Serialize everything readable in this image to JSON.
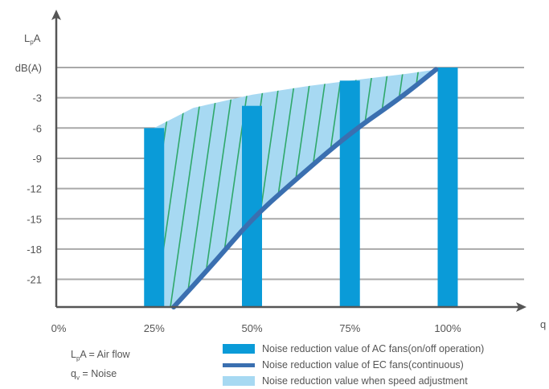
{
  "chart_data": {
    "type": "bar",
    "ylabel": "L_pA",
    "ylabel_main": "L",
    "ylabel_sub": "p",
    "ylabel_end": "A",
    "xlabel": "q",
    "y_unit_label": "dB(A)",
    "ylim": [
      -24,
      0
    ],
    "y_ticks": [
      {
        "value": 0,
        "label": "dB(A)"
      },
      {
        "value": -3,
        "label": "-3"
      },
      {
        "value": -6,
        "label": "-6"
      },
      {
        "value": -9,
        "label": "-9"
      },
      {
        "value": -12,
        "label": "-12"
      },
      {
        "value": -15,
        "label": "-15"
      },
      {
        "value": -18,
        "label": "-18"
      },
      {
        "value": -21,
        "label": "-21"
      }
    ],
    "x_ticks": [
      {
        "value": 0,
        "label": "0%"
      },
      {
        "value": 25,
        "label": "25%"
      },
      {
        "value": 50,
        "label": "50%"
      },
      {
        "value": 75,
        "label": "75%"
      },
      {
        "value": 100,
        "label": "100%"
      }
    ],
    "grid": true,
    "series": [
      {
        "name": "Noise reduction value of AC fans(on/off operation)",
        "kind": "bar",
        "color": "#0a9bd8",
        "x": [
          25,
          50,
          75,
          100
        ],
        "values": [
          -6,
          -3.8,
          -1.3,
          0
        ]
      },
      {
        "name": "Noise reduction value of EC fans(continuous)",
        "kind": "line",
        "color": "#3a6fb0",
        "x": [
          30,
          40,
          50,
          60,
          75,
          88,
          97
        ],
        "values": [
          -24,
          -19.5,
          -15,
          -11.5,
          -6.5,
          -3,
          -0.2
        ]
      },
      {
        "name": "Noise reduction value when speed adjustment",
        "kind": "area",
        "color": "#a7d9f2",
        "hatch_color": "#2fa86a",
        "x": [
          25,
          35,
          50,
          65,
          75,
          90,
          97
        ],
        "values": [
          -6,
          -4,
          -2.7,
          -1.8,
          -1.3,
          -0.6,
          -0.2
        ]
      }
    ],
    "notes": [
      {
        "main": "L",
        "sub": "p",
        "rest": "A = Air flow"
      },
      {
        "main": "q",
        "sub": "v",
        "rest": " = Noise"
      }
    ]
  }
}
